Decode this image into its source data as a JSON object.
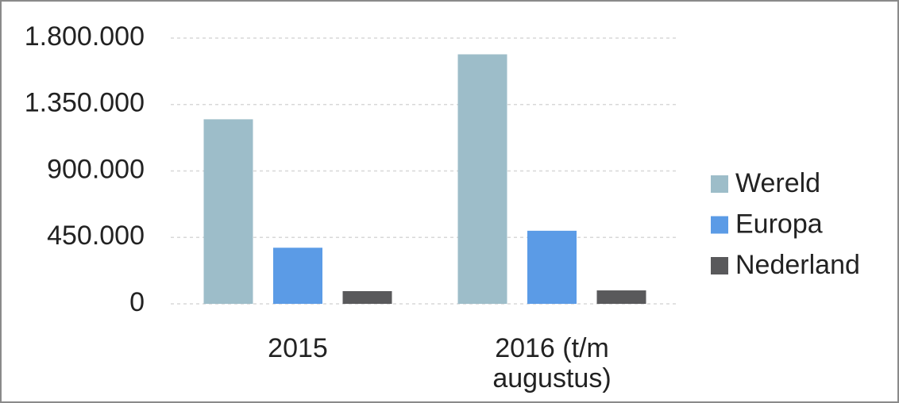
{
  "chart_data": {
    "type": "bar",
    "categories": [
      "2015",
      "2016 (t/m augustus)"
    ],
    "series": [
      {
        "name": "Wereld",
        "color": "#9dbdc9",
        "values": [
          1250000,
          1690000
        ]
      },
      {
        "name": "Europa",
        "color": "#5b9be6",
        "values": [
          380000,
          495000
        ]
      },
      {
        "name": "Nederland",
        "color": "#59595b",
        "values": [
          86000,
          91000
        ]
      }
    ],
    "ylim": [
      0,
      1800000
    ],
    "yticks": [
      0,
      {
        "value": 450000,
        "label": "450.000"
      },
      {
        "value": 900000,
        "label": "900.000"
      },
      {
        "value": 1350000,
        "label": "1.350.000"
      },
      {
        "value": 1800000,
        "label": "1.800.000"
      }
    ],
    "grid": true,
    "legend": "right"
  }
}
